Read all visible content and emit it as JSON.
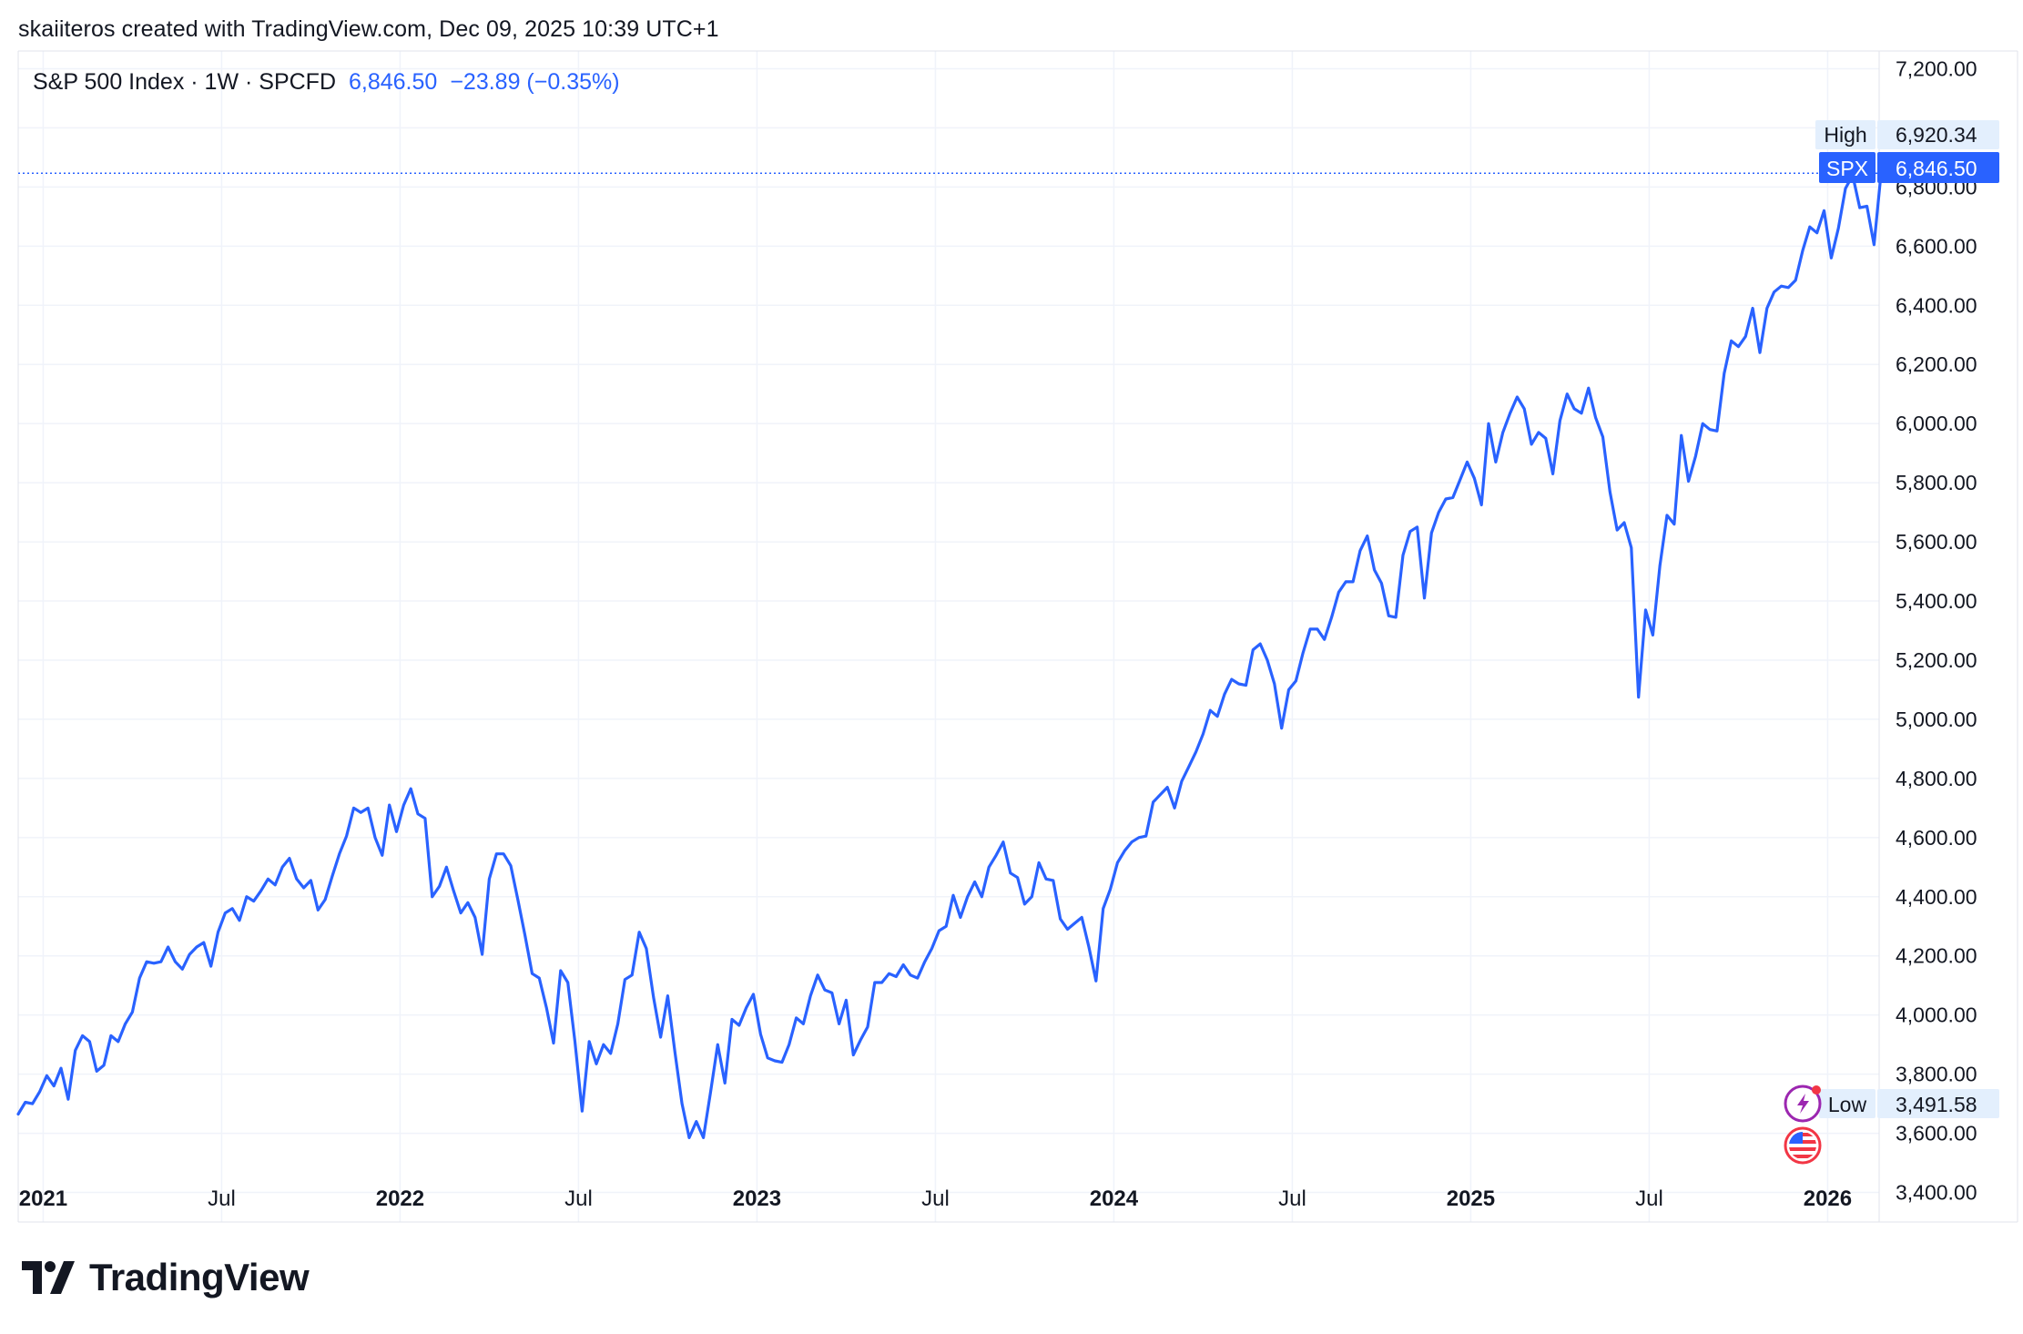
{
  "header": {
    "attribution": "skaiiteros created with TradingView.com, Dec 09, 2025 10:39 UTC+1"
  },
  "legend": {
    "symbol_line": "S&P 500 Index · 1W · SPCFD",
    "last_value": "6,846.50",
    "change": "−23.89 (−0.35%)"
  },
  "price_labels": {
    "high_label": "High",
    "high_value": "6,920.34",
    "symbol_label": "SPX",
    "symbol_value": "6,846.50",
    "low_label": "Low",
    "low_value": "3,491.58"
  },
  "brand": {
    "name": "TradingView"
  },
  "colors": {
    "line": "#2962ff",
    "grid": "#f0f3fa",
    "label_bg": "#e3effd",
    "accent": "#2962ff"
  },
  "icons": [
    "tv-logo-icon",
    "lightning-icon",
    "us-flag-icon"
  ],
  "chart_data": {
    "type": "line",
    "interval": "1W",
    "ylim": [
      3300,
      7260
    ],
    "y_ticks": [
      3400,
      3600,
      3800,
      4000,
      4200,
      4400,
      4600,
      4800,
      5000,
      5200,
      5400,
      5600,
      5800,
      6000,
      6200,
      6400,
      6600,
      6800,
      7000,
      7200
    ],
    "y_tick_labels": [
      "3,400.00",
      "3,600.00",
      "3,800.00",
      "4,000.00",
      "4,200.00",
      "4,400.00",
      "4,600.00",
      "4,800.00",
      "5,000.00",
      "5,200.00",
      "5,400.00",
      "5,600.00",
      "5,800.00",
      "6,000.00",
      "6,200.00",
      "6,400.00",
      "6,600.00",
      "6,800.00",
      "7,000.00",
      "7,200.00"
    ],
    "x_ticks": [
      {
        "label": "2021",
        "t": 2021.0,
        "bold": true
      },
      {
        "label": "Jul",
        "t": 2021.5,
        "bold": false
      },
      {
        "label": "2022",
        "t": 2022.0,
        "bold": true
      },
      {
        "label": "Jul",
        "t": 2022.5,
        "bold": false
      },
      {
        "label": "2023",
        "t": 2023.0,
        "bold": true
      },
      {
        "label": "Jul",
        "t": 2023.5,
        "bold": false
      },
      {
        "label": "2024",
        "t": 2024.0,
        "bold": true
      },
      {
        "label": "Jul",
        "t": 2024.5,
        "bold": false
      },
      {
        "label": "2025",
        "t": 2025.0,
        "bold": true
      },
      {
        "label": "Jul",
        "t": 2025.5,
        "bold": false
      },
      {
        "label": "2026",
        "t": 2026.0,
        "bold": true
      }
    ],
    "high": 6920.34,
    "last": 6846.5,
    "low": 3491.58,
    "series": [
      {
        "points": [
          [
            2020.93,
            3665
          ],
          [
            2020.95,
            3705
          ],
          [
            2020.97,
            3700
          ],
          [
            2020.99,
            3740
          ],
          [
            2021.01,
            3795
          ],
          [
            2021.03,
            3760
          ],
          [
            2021.05,
            3820
          ],
          [
            2021.07,
            3715
          ],
          [
            2021.09,
            3880
          ],
          [
            2021.11,
            3930
          ],
          [
            2021.13,
            3910
          ],
          [
            2021.15,
            3810
          ],
          [
            2021.17,
            3830
          ],
          [
            2021.19,
            3930
          ],
          [
            2021.21,
            3910
          ],
          [
            2021.23,
            3970
          ],
          [
            2021.25,
            4010
          ],
          [
            2021.27,
            4125
          ],
          [
            2021.29,
            4180
          ],
          [
            2021.31,
            4175
          ],
          [
            2021.33,
            4180
          ],
          [
            2021.35,
            4230
          ],
          [
            2021.37,
            4180
          ],
          [
            2021.39,
            4155
          ],
          [
            2021.41,
            4205
          ],
          [
            2021.43,
            4230
          ],
          [
            2021.45,
            4245
          ],
          [
            2021.47,
            4165
          ],
          [
            2021.49,
            4280
          ],
          [
            2021.51,
            4345
          ],
          [
            2021.53,
            4360
          ],
          [
            2021.55,
            4320
          ],
          [
            2021.57,
            4400
          ],
          [
            2021.59,
            4385
          ],
          [
            2021.61,
            4420
          ],
          [
            2021.63,
            4460
          ],
          [
            2021.65,
            4440
          ],
          [
            2021.67,
            4500
          ],
          [
            2021.69,
            4530
          ],
          [
            2021.71,
            4460
          ],
          [
            2021.73,
            4430
          ],
          [
            2021.75,
            4455
          ],
          [
            2021.77,
            4355
          ],
          [
            2021.79,
            4390
          ],
          [
            2021.81,
            4470
          ],
          [
            2021.83,
            4545
          ],
          [
            2021.85,
            4605
          ],
          [
            2021.87,
            4700
          ],
          [
            2021.89,
            4685
          ],
          [
            2021.91,
            4700
          ],
          [
            2021.93,
            4600
          ],
          [
            2021.95,
            4540
          ],
          [
            2021.97,
            4710
          ],
          [
            2021.99,
            4620
          ],
          [
            2022.01,
            4710
          ],
          [
            2022.03,
            4765
          ],
          [
            2022.05,
            4680
          ],
          [
            2022.07,
            4665
          ],
          [
            2022.09,
            4400
          ],
          [
            2022.11,
            4435
          ],
          [
            2022.13,
            4500
          ],
          [
            2022.15,
            4420
          ],
          [
            2022.17,
            4345
          ],
          [
            2022.19,
            4380
          ],
          [
            2022.21,
            4330
          ],
          [
            2022.23,
            4205
          ],
          [
            2022.25,
            4460
          ],
          [
            2022.27,
            4545
          ],
          [
            2022.29,
            4545
          ],
          [
            2022.31,
            4505
          ],
          [
            2022.33,
            4390
          ],
          [
            2022.35,
            4270
          ],
          [
            2022.37,
            4140
          ],
          [
            2022.39,
            4125
          ],
          [
            2022.41,
            4025
          ],
          [
            2022.43,
            3905
          ],
          [
            2022.45,
            4150
          ],
          [
            2022.47,
            4110
          ],
          [
            2022.49,
            3910
          ],
          [
            2022.51,
            3675
          ],
          [
            2022.53,
            3910
          ],
          [
            2022.55,
            3835
          ],
          [
            2022.57,
            3900
          ],
          [
            2022.59,
            3870
          ],
          [
            2022.61,
            3970
          ],
          [
            2022.63,
            4120
          ],
          [
            2022.65,
            4135
          ],
          [
            2022.67,
            4280
          ],
          [
            2022.69,
            4225
          ],
          [
            2022.71,
            4060
          ],
          [
            2022.73,
            3925
          ],
          [
            2022.75,
            4065
          ],
          [
            2022.77,
            3875
          ],
          [
            2022.79,
            3700
          ],
          [
            2022.81,
            3585
          ],
          [
            2022.83,
            3640
          ],
          [
            2022.85,
            3585
          ],
          [
            2022.87,
            3740
          ],
          [
            2022.89,
            3900
          ],
          [
            2022.91,
            3770
          ],
          [
            2022.93,
            3985
          ],
          [
            2022.95,
            3965
          ],
          [
            2022.97,
            4025
          ],
          [
            2022.99,
            4070
          ],
          [
            2023.01,
            3935
          ],
          [
            2023.03,
            3855
          ],
          [
            2023.05,
            3845
          ],
          [
            2023.07,
            3840
          ],
          [
            2023.09,
            3900
          ],
          [
            2023.11,
            3990
          ],
          [
            2023.13,
            3970
          ],
          [
            2023.15,
            4065
          ],
          [
            2023.17,
            4135
          ],
          [
            2023.19,
            4085
          ],
          [
            2023.21,
            4075
          ],
          [
            2023.23,
            3970
          ],
          [
            2023.25,
            4050
          ],
          [
            2023.27,
            3865
          ],
          [
            2023.29,
            3915
          ],
          [
            2023.31,
            3960
          ],
          [
            2023.33,
            4110
          ],
          [
            2023.35,
            4110
          ],
          [
            2023.37,
            4140
          ],
          [
            2023.39,
            4130
          ],
          [
            2023.41,
            4170
          ],
          [
            2023.43,
            4135
          ],
          [
            2023.45,
            4125
          ],
          [
            2023.47,
            4180
          ],
          [
            2023.49,
            4225
          ],
          [
            2023.51,
            4285
          ],
          [
            2023.53,
            4300
          ],
          [
            2023.55,
            4405
          ],
          [
            2023.57,
            4330
          ],
          [
            2023.59,
            4400
          ],
          [
            2023.61,
            4450
          ],
          [
            2023.63,
            4400
          ],
          [
            2023.65,
            4500
          ],
          [
            2023.67,
            4540
          ],
          [
            2023.69,
            4585
          ],
          [
            2023.71,
            4480
          ],
          [
            2023.73,
            4465
          ],
          [
            2023.75,
            4375
          ],
          [
            2023.77,
            4400
          ],
          [
            2023.79,
            4515
          ],
          [
            2023.81,
            4460
          ],
          [
            2023.83,
            4455
          ],
          [
            2023.85,
            4325
          ],
          [
            2023.87,
            4290
          ],
          [
            2023.89,
            4310
          ],
          [
            2023.91,
            4330
          ],
          [
            2023.93,
            4230
          ],
          [
            2023.95,
            4115
          ],
          [
            2023.97,
            4360
          ],
          [
            2023.99,
            4425
          ],
          [
            2024.01,
            4515
          ],
          [
            2024.03,
            4555
          ],
          [
            2024.05,
            4585
          ],
          [
            2024.07,
            4600
          ],
          [
            2024.09,
            4605
          ],
          [
            2024.11,
            4720
          ],
          [
            2024.13,
            4745
          ],
          [
            2024.15,
            4770
          ],
          [
            2024.17,
            4700
          ],
          [
            2024.19,
            4790
          ],
          [
            2024.21,
            4840
          ],
          [
            2024.23,
            4890
          ],
          [
            2024.25,
            4950
          ],
          [
            2024.27,
            5030
          ],
          [
            2024.29,
            5010
          ],
          [
            2024.31,
            5085
          ],
          [
            2024.33,
            5135
          ],
          [
            2024.35,
            5120
          ],
          [
            2024.37,
            5115
          ],
          [
            2024.39,
            5235
          ],
          [
            2024.41,
            5255
          ],
          [
            2024.43,
            5200
          ],
          [
            2024.45,
            5120
          ],
          [
            2024.47,
            4970
          ],
          [
            2024.49,
            5100
          ],
          [
            2024.51,
            5130
          ],
          [
            2024.53,
            5225
          ],
          [
            2024.55,
            5305
          ],
          [
            2024.57,
            5305
          ],
          [
            2024.59,
            5270
          ],
          [
            2024.61,
            5345
          ],
          [
            2024.63,
            5430
          ],
          [
            2024.65,
            5465
          ],
          [
            2024.67,
            5465
          ],
          [
            2024.69,
            5570
          ],
          [
            2024.71,
            5620
          ],
          [
            2024.73,
            5505
          ],
          [
            2024.75,
            5460
          ],
          [
            2024.77,
            5350
          ],
          [
            2024.79,
            5345
          ],
          [
            2024.81,
            5555
          ],
          [
            2024.83,
            5635
          ],
          [
            2024.85,
            5650
          ],
          [
            2024.87,
            5410
          ],
          [
            2024.89,
            5630
          ],
          [
            2024.91,
            5700
          ],
          [
            2024.93,
            5745
          ],
          [
            2024.95,
            5750
          ],
          [
            2024.97,
            5810
          ],
          [
            2024.99,
            5870
          ],
          [
            2025.01,
            5815
          ],
          [
            2025.03,
            5725
          ],
          [
            2025.05,
            6000
          ],
          [
            2025.07,
            5870
          ],
          [
            2025.09,
            5970
          ],
          [
            2025.11,
            6035
          ],
          [
            2025.13,
            6090
          ],
          [
            2025.15,
            6050
          ],
          [
            2025.17,
            5930
          ],
          [
            2025.19,
            5970
          ],
          [
            2025.21,
            5950
          ],
          [
            2025.23,
            5830
          ],
          [
            2025.25,
            6010
          ],
          [
            2025.27,
            6100
          ],
          [
            2025.29,
            6050
          ],
          [
            2025.31,
            6035
          ],
          [
            2025.33,
            6120
          ],
          [
            2025.35,
            6020
          ],
          [
            2025.37,
            5955
          ],
          [
            2025.39,
            5770
          ],
          [
            2025.41,
            5640
          ],
          [
            2025.43,
            5665
          ],
          [
            2025.45,
            5580
          ],
          [
            2025.47,
            5075
          ],
          [
            2025.49,
            5370
          ],
          [
            2025.51,
            5285
          ],
          [
            2025.53,
            5520
          ],
          [
            2025.55,
            5690
          ],
          [
            2025.57,
            5660
          ],
          [
            2025.59,
            5960
          ],
          [
            2025.61,
            5805
          ],
          [
            2025.63,
            5890
          ],
          [
            2025.65,
            6000
          ],
          [
            2025.67,
            5980
          ],
          [
            2025.69,
            5975
          ],
          [
            2025.71,
            6170
          ],
          [
            2025.73,
            6280
          ],
          [
            2025.75,
            6260
          ],
          [
            2025.77,
            6295
          ],
          [
            2025.79,
            6390
          ],
          [
            2025.81,
            6240
          ],
          [
            2025.83,
            6390
          ],
          [
            2025.85,
            6445
          ],
          [
            2025.87,
            6465
          ],
          [
            2025.89,
            6460
          ],
          [
            2025.91,
            6485
          ],
          [
            2025.93,
            6585
          ],
          [
            2025.95,
            6665
          ],
          [
            2025.97,
            6645
          ],
          [
            2025.99,
            6720
          ],
          [
            2026.01,
            6560
          ],
          [
            2026.03,
            6660
          ],
          [
            2026.05,
            6795
          ],
          [
            2026.07,
            6840
          ],
          [
            2026.09,
            6730
          ],
          [
            2026.11,
            6735
          ],
          [
            2026.13,
            6605
          ],
          [
            2026.15,
            6850
          ],
          [
            2026.17,
            6870
          ],
          [
            2026.19,
            6846.5
          ]
        ]
      }
    ]
  }
}
